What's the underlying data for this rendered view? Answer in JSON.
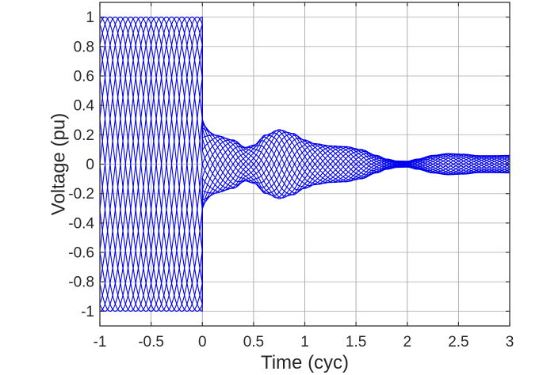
{
  "window": {
    "background": "#ffffff"
  },
  "chart_data": {
    "type": "line",
    "title": "",
    "xlabel": "Time (cyc)",
    "ylabel": "Voltage (pu)",
    "xlim": [
      -1,
      3
    ],
    "ylim": [
      -1.1,
      1.1
    ],
    "xticks": [
      -1,
      -0.5,
      0,
      0.5,
      1,
      1.5,
      2,
      2.5,
      3
    ],
    "xtick_labels": [
      "-1",
      "-0.5",
      "0",
      "0.5",
      "1",
      "1.5",
      "2",
      "2.5",
      "3"
    ],
    "yticks": [
      1,
      0.8,
      0.6,
      0.4,
      0.2,
      0,
      -0.2,
      -0.4,
      -0.6,
      -0.8,
      -1
    ],
    "ytick_labels": [
      "1",
      "0.8",
      "0.6",
      "0.4",
      "0.2",
      "0",
      "-0.2",
      "-0.4",
      "-0.6",
      "-0.8",
      "-1"
    ],
    "grid": true,
    "legend": "none",
    "colors": {
      "line": "#0000ee",
      "axis": "#333333",
      "grid": "#aeaeae",
      "tick_text": "#262626"
    },
    "ensemble": {
      "description": "Overlay of 20 sinusoidal voltage traces (period 1 cyc) with initiation phase shifted by 0.05 cyc each; 1 pu flat-top band before t=0, abrupt vertical collapse at t=0 to a residual oscillation whose common envelope beats and decays",
      "num_traces": 20,
      "period_cyc": 1,
      "phase_step_cyc": 0.05,
      "pre_fault_amplitude": 1,
      "fault_time": 0,
      "transition_boost": {
        "amp": 0.1,
        "tau": 0.05
      },
      "envelope_points": {
        "t": [
          0,
          0.15,
          0.3,
          0.42,
          0.5,
          0.62,
          0.75,
          0.88,
          1.0,
          1.1,
          1.25,
          1.4,
          1.55,
          1.7,
          1.8,
          1.9,
          2.0,
          2.1,
          2.25,
          2.4,
          2.55,
          2.7,
          2.85,
          3.0
        ],
        "amp": [
          0.205,
          0.19,
          0.165,
          0.115,
          0.13,
          0.2,
          0.235,
          0.21,
          0.165,
          0.14,
          0.125,
          0.12,
          0.1,
          0.06,
          0.035,
          0.022,
          0.02,
          0.035,
          0.06,
          0.072,
          0.068,
          0.058,
          0.058,
          0.06
        ]
      }
    }
  }
}
